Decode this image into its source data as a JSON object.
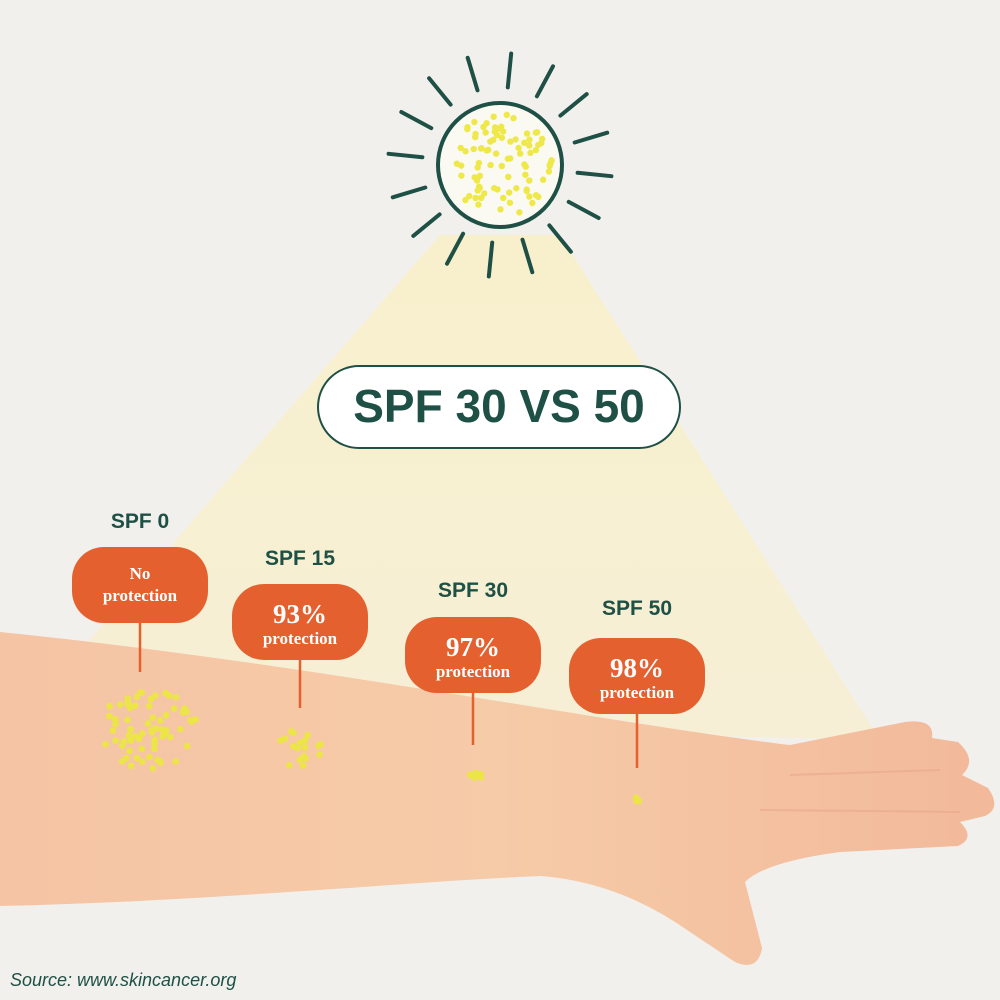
{
  "title": "SPF 30 VS 50",
  "markers": [
    {
      "label": "SPF 0",
      "lines": [
        "No",
        "protection"
      ]
    },
    {
      "label": "SPF 15",
      "percent": "93%",
      "text": "protection"
    },
    {
      "label": "SPF 30",
      "percent": "97%",
      "text": "protection"
    },
    {
      "label": "SPF 50",
      "percent": "98%",
      "text": "protection"
    }
  ],
  "source": "Source: www.skincancer.org"
}
